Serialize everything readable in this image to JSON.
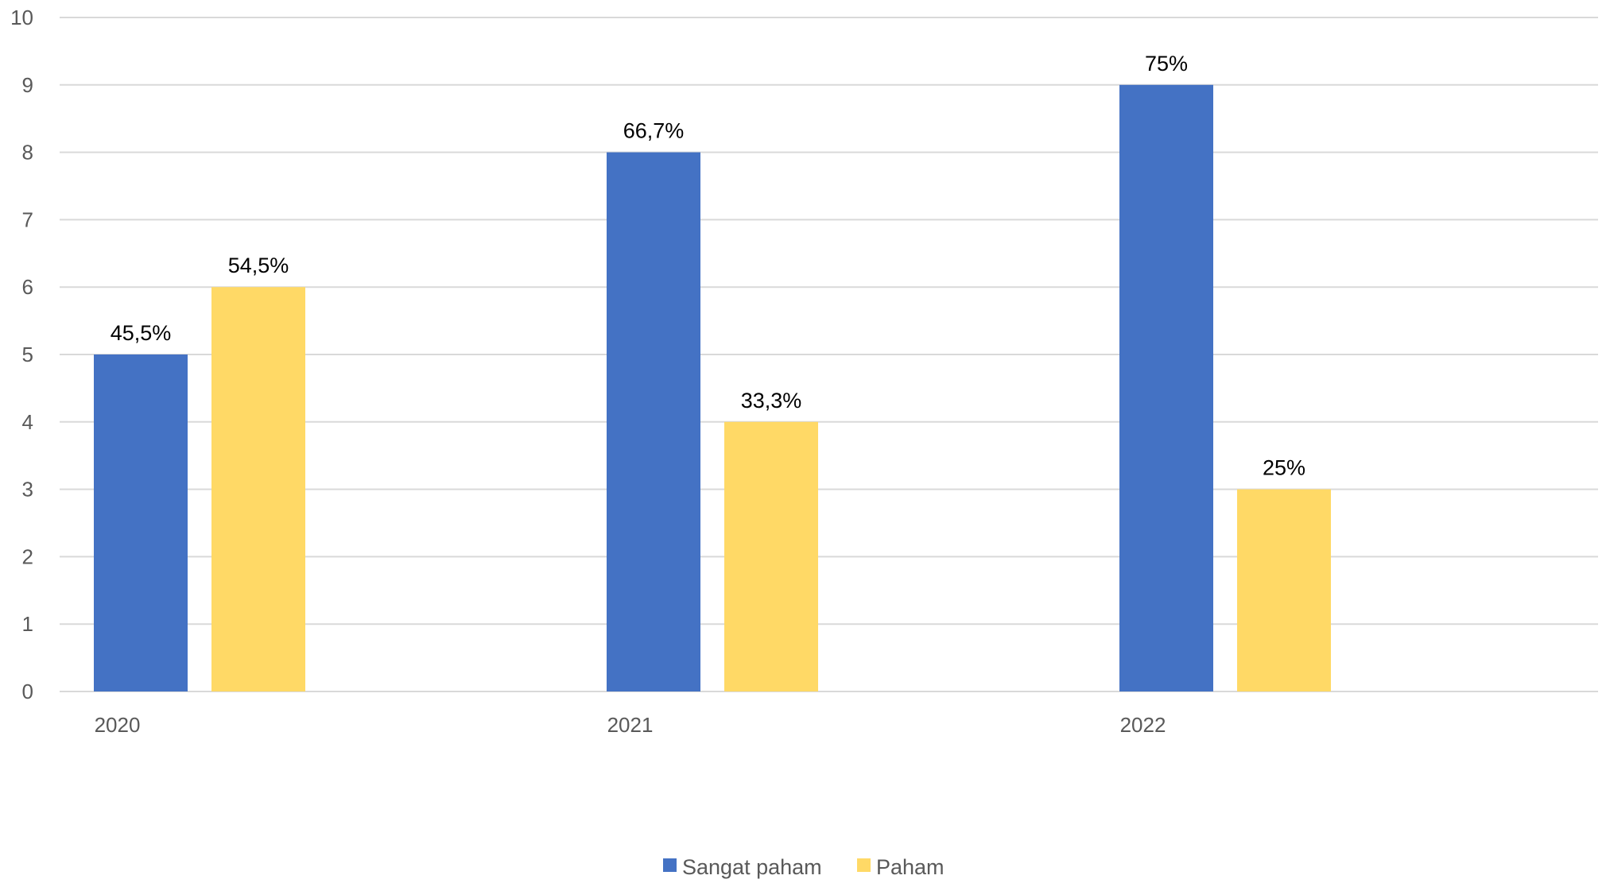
{
  "chart_data": {
    "type": "bar",
    "title": "",
    "xlabel": "",
    "ylabel": "",
    "categories": [
      "2020",
      "2021",
      "2022"
    ],
    "ylim": [
      0,
      10
    ],
    "yticks": [
      0,
      1,
      2,
      3,
      4,
      5,
      6,
      7,
      8,
      9,
      10
    ],
    "grid": true,
    "legend_position": "bottom",
    "series": [
      {
        "name": "Sangat paham",
        "color": "#4472C4",
        "values": [
          5,
          8,
          9
        ],
        "labels": [
          "45,5%",
          "66,7%",
          "75%"
        ]
      },
      {
        "name": "Paham",
        "color": "#FFD966",
        "values": [
          6,
          4,
          3
        ],
        "labels": [
          "54,5%",
          "33,3%",
          "25%"
        ]
      }
    ]
  }
}
